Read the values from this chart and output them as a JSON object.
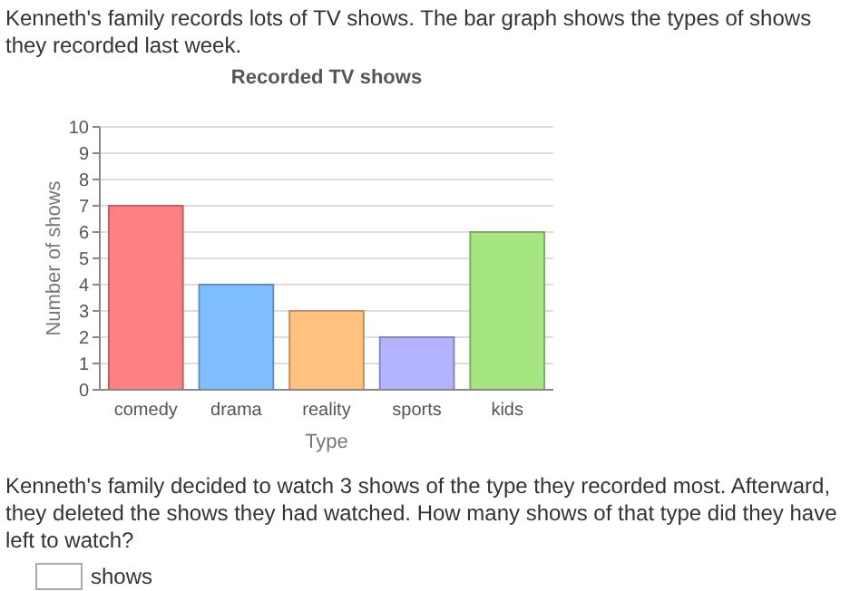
{
  "chart_data": {
    "type": "bar",
    "title": "Recorded TV shows",
    "xlabel": "Type",
    "ylabel": "Number of shows",
    "categories": [
      "comedy",
      "drama",
      "reality",
      "sports",
      "kids"
    ],
    "values": [
      7,
      4,
      3,
      2,
      6
    ],
    "colors": [
      "#ff8080",
      "#80bfff",
      "#ffc080",
      "#b3b3ff",
      "#a6e680"
    ],
    "ylim": [
      0,
      10
    ],
    "yticks": [
      0,
      1,
      2,
      3,
      4,
      5,
      6,
      7,
      8,
      9,
      10
    ],
    "grid": "y",
    "annotations": [
      "Kenneth's family records lots of TV shows. The bar graph shows the types of shows they recorded last week.",
      "Kenneth's family decided to watch 3 shows of the type they recorded most. Afterward, they deleted the shows they had watched. How many shows of that type did they have left to watch?",
      "shows"
    ]
  }
}
